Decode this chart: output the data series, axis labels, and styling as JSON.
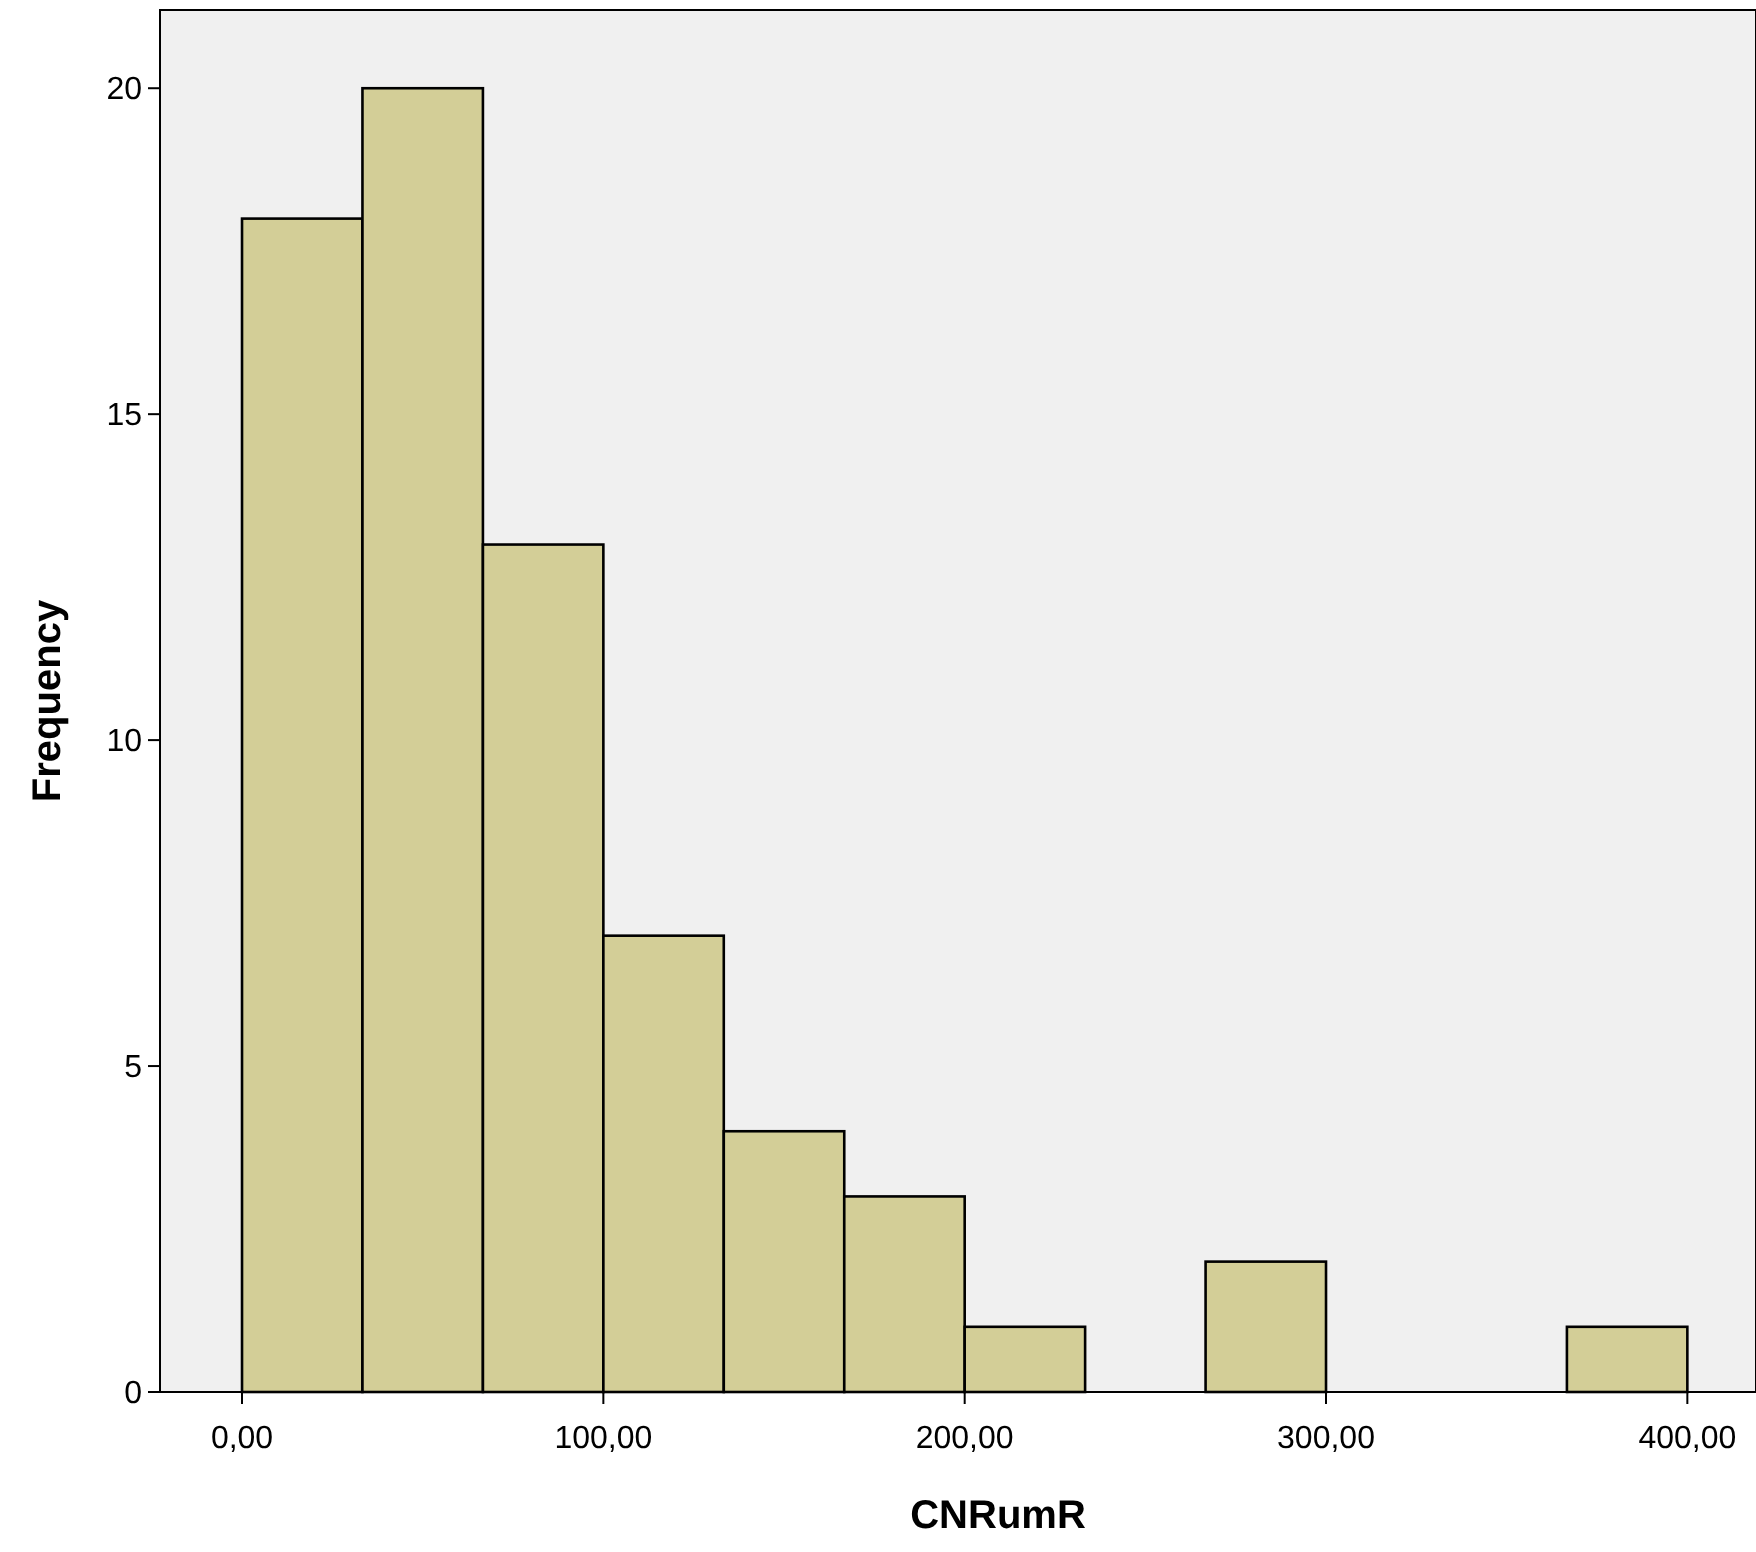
{
  "chart_data": {
    "type": "histogram",
    "xlabel": "CNRumR",
    "ylabel": "Frequency",
    "bins": [
      0,
      33.33,
      66.67,
      100,
      133.33,
      166.67,
      200,
      233.33,
      266.67,
      300,
      333.33,
      366.67,
      400
    ],
    "values": [
      18,
      20,
      13,
      7,
      4,
      3,
      1,
      0,
      2,
      0,
      0,
      1
    ],
    "color": "#d3ce97",
    "xlim": [
      -22.7,
      419
    ],
    "ylim": [
      0,
      21.2
    ],
    "xticks": [
      {
        "value": 0,
        "label": "0,00"
      },
      {
        "value": 100,
        "label": "100,00"
      },
      {
        "value": 200,
        "label": "200,00"
      },
      {
        "value": 300,
        "label": "300,00"
      },
      {
        "value": 400,
        "label": "400,00"
      }
    ],
    "yticks": [
      0,
      5,
      10,
      15,
      20
    ],
    "grid": false
  }
}
